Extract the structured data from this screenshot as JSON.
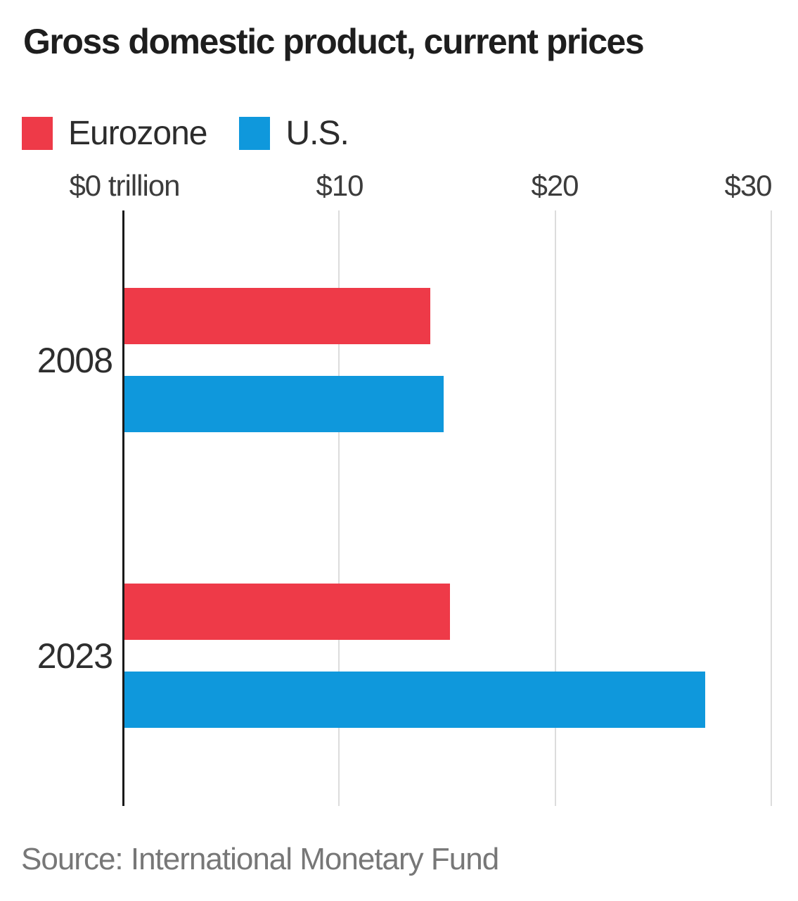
{
  "title": "Gross domestic product, current prices",
  "legend": [
    {
      "label": "Eurozone",
      "color": "#ee3a48",
      "swatch": "red-square"
    },
    {
      "label": "U.S.",
      "color": "#0f98dc",
      "swatch": "blue-square"
    }
  ],
  "axis": {
    "tick_labels": [
      "$0 trillion",
      "$10",
      "$20",
      "$30"
    ]
  },
  "source": "Source: International Monetary Fund",
  "colors": {
    "eurozone_red": "#ee3a48",
    "us_blue": "#0f98dc",
    "gridline": "#dcdcdc",
    "axis_line": "#1a1a1a"
  },
  "chart_data": {
    "type": "bar",
    "orientation": "horizontal",
    "title": "Gross domestic product, current prices",
    "unit": "trillion USD",
    "categories": [
      "2008",
      "2023"
    ],
    "series": [
      {
        "name": "Eurozone",
        "color": "#ee3a48",
        "values": [
          14.2,
          15.1
        ]
      },
      {
        "name": "U.S.",
        "color": "#0f98dc",
        "values": [
          14.8,
          26.9
        ]
      }
    ],
    "xlim": [
      0,
      30
    ],
    "xticks": [
      0,
      10,
      20,
      30
    ],
    "xtick_labels": [
      "$0 trillion",
      "$10",
      "$20",
      "$30"
    ],
    "grid": true,
    "legend_position": "top-left",
    "source": "Source: International Monetary Fund"
  }
}
